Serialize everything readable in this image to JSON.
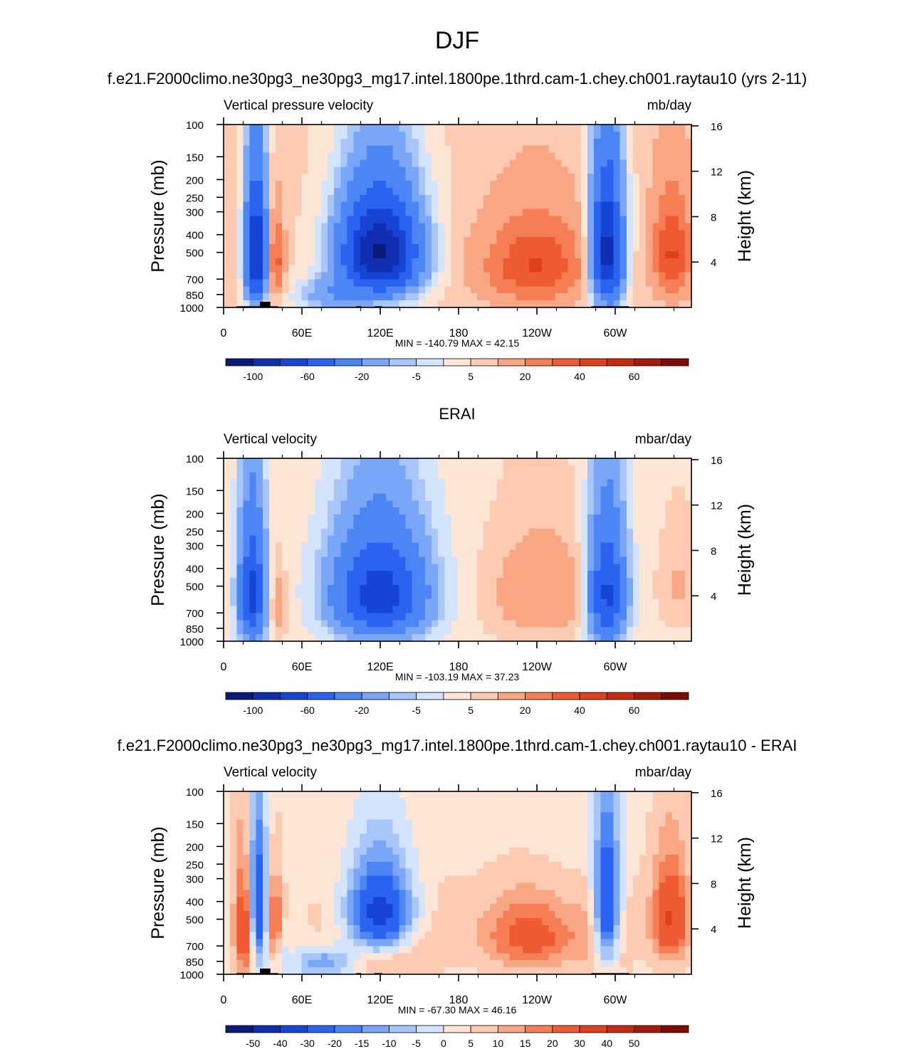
{
  "figure": {
    "title": "DJF"
  },
  "chart_data": [
    {
      "type": "heatmap",
      "title": "f.e21.F2000climo.ne30pg3_ne30pg3_mg17.intel.1800pe.1thrd.cam-1.chey.ch001.raytau10 (yrs 2-11)",
      "left_label": "Vertical pressure velocity",
      "right_label": "mb/day",
      "ylabel": "Pressure (mb)",
      "y2label": "Height (km)",
      "x_ticks": [
        "0",
        "60E",
        "120E",
        "180",
        "120W",
        "60W"
      ],
      "y_ticks": [
        "100",
        "150",
        "200",
        "250",
        "300",
        "400",
        "500",
        "700",
        "850",
        "1000"
      ],
      "y2_ticks": [
        "16",
        "12",
        "8",
        "4"
      ],
      "stats": "MIN = -140.79  MAX =  42.15",
      "ylim": [
        1000,
        100
      ],
      "colorbar_labels": [
        "-100",
        "-60",
        "-20",
        "-5",
        "5",
        "20",
        "40",
        "60"
      ],
      "colorbar_levels": [
        -120,
        -100,
        -80,
        -60,
        -40,
        -20,
        -10,
        -5,
        0,
        5,
        10,
        20,
        30,
        40,
        50,
        60,
        70
      ],
      "colors": [
        "#0a1a7a",
        "#0f2fb0",
        "#1645d6",
        "#2a63f0",
        "#4c86f5",
        "#7aa6f7",
        "#a8c6fa",
        "#d3e4fc",
        "#fde6d6",
        "#fccbb2",
        "#f9a684",
        "#f57e55",
        "#ee5a32",
        "#e0401e",
        "#c82a10",
        "#a51a08",
        "#7e0c02"
      ]
    },
    {
      "type": "heatmap",
      "title": "ERAI",
      "left_label": "Vertical velocity",
      "right_label": "mbar/day",
      "ylabel": "Pressure (mb)",
      "y2label": "Height (km)",
      "x_ticks": [
        "0",
        "60E",
        "120E",
        "180",
        "120W",
        "60W"
      ],
      "y_ticks": [
        "100",
        "150",
        "200",
        "250",
        "300",
        "400",
        "500",
        "700",
        "850",
        "1000"
      ],
      "y2_ticks": [
        "16",
        "12",
        "8",
        "4"
      ],
      "stats": "MIN = -103.19  MAX =  37.23",
      "ylim": [
        1000,
        100
      ],
      "colorbar_labels": [
        "-100",
        "-60",
        "-20",
        "-5",
        "5",
        "20",
        "40",
        "60"
      ],
      "colorbar_levels": [
        -120,
        -100,
        -80,
        -60,
        -40,
        -20,
        -10,
        -5,
        0,
        5,
        10,
        20,
        30,
        40,
        50,
        60,
        70
      ],
      "colors": [
        "#0a1a7a",
        "#0f2fb0",
        "#1645d6",
        "#2a63f0",
        "#4c86f5",
        "#7aa6f7",
        "#a8c6fa",
        "#d3e4fc",
        "#fde6d6",
        "#fccbb2",
        "#f9a684",
        "#f57e55",
        "#ee5a32",
        "#e0401e",
        "#c82a10",
        "#a51a08",
        "#7e0c02"
      ]
    },
    {
      "type": "heatmap",
      "title": "f.e21.F2000climo.ne30pg3_ne30pg3_mg17.intel.1800pe.1thrd.cam-1.chey.ch001.raytau10 - ERAI",
      "left_label": "Vertical velocity",
      "right_label": "mbar/day",
      "ylabel": "Pressure (mb)",
      "y2label": "Height (km)",
      "x_ticks": [
        "0",
        "60E",
        "120E",
        "180",
        "120W",
        "60W"
      ],
      "y_ticks": [
        "100",
        "150",
        "200",
        "250",
        "300",
        "400",
        "500",
        "700",
        "850",
        "1000"
      ],
      "y2_ticks": [
        "16",
        "12",
        "8",
        "4"
      ],
      "stats": "MIN = -67.30  MAX =  46.16",
      "ylim": [
        1000,
        100
      ],
      "colorbar_labels": [
        "-50",
        "-40",
        "-30",
        "-20",
        "-15",
        "-10",
        "-5",
        "0",
        "5",
        "10",
        "15",
        "20",
        "30",
        "40",
        "50"
      ],
      "colorbar_levels": [
        -60,
        -50,
        -40,
        -30,
        -20,
        -15,
        -10,
        -5,
        0,
        5,
        10,
        15,
        20,
        30,
        40,
        50,
        60
      ],
      "colors": [
        "#0a1a7a",
        "#0f2fb0",
        "#1645d6",
        "#2a63f0",
        "#4c86f5",
        "#7aa6f7",
        "#a8c6fa",
        "#d3e4fc",
        "#fde6d6",
        "#fccbb2",
        "#f9a684",
        "#f57e55",
        "#ee5a32",
        "#e0401e",
        "#c82a10",
        "#a51a08",
        "#7e0c02"
      ]
    }
  ]
}
